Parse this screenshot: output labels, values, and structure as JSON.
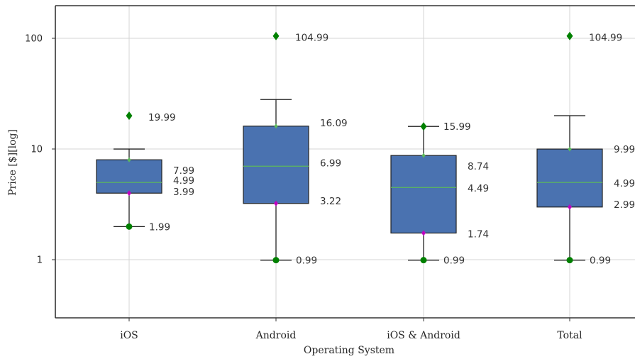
{
  "chart_data": {
    "type": "box",
    "title": "",
    "xlabel": "Operating System",
    "ylabel": "Price [$][log]",
    "yscale": "log",
    "ylim": [
      0.3,
      200
    ],
    "yticks": [
      1,
      10,
      100
    ],
    "ytick_labels": [
      "1",
      "10",
      "100"
    ],
    "grid": true,
    "categories": [
      "iOS",
      "Android",
      "iOS & Android",
      "Total"
    ],
    "boxes": [
      {
        "category": "iOS",
        "whisker_low": 1.99,
        "q1": 3.99,
        "median": 4.99,
        "q3": 7.99,
        "whisker_high": 9.99,
        "outliers": [
          19.99
        ],
        "annotations": [
          {
            "value": 19.99,
            "text": "19.99"
          },
          {
            "value": 7.99,
            "text": "7.99"
          },
          {
            "value": 4.99,
            "text": "4.99"
          },
          {
            "value": 3.99,
            "text": "3.99"
          },
          {
            "value": 1.99,
            "text": "1.99"
          }
        ]
      },
      {
        "category": "Android",
        "whisker_low": 0.99,
        "q1": 3.22,
        "median": 6.99,
        "q3": 16.09,
        "whisker_high": 27.99,
        "outliers": [
          104.99
        ],
        "annotations": [
          {
            "value": 104.99,
            "text": "104.99"
          },
          {
            "value": 16.09,
            "text": "16.09"
          },
          {
            "value": 6.99,
            "text": "6.99"
          },
          {
            "value": 3.22,
            "text": "3.22"
          },
          {
            "value": 0.99,
            "text": "0.99"
          }
        ]
      },
      {
        "category": "iOS & Android",
        "whisker_low": 0.99,
        "q1": 1.74,
        "median": 4.49,
        "q3": 8.74,
        "whisker_high": 15.99,
        "outliers": [],
        "annotations": [
          {
            "value": 15.99,
            "text": "15.99"
          },
          {
            "value": 8.74,
            "text": "8.74"
          },
          {
            "value": 4.49,
            "text": "4.49"
          },
          {
            "value": 1.74,
            "text": "1.74"
          },
          {
            "value": 0.99,
            "text": "0.99"
          }
        ]
      },
      {
        "category": "Total",
        "whisker_low": 0.99,
        "q1": 2.99,
        "median": 4.99,
        "q3": 9.99,
        "whisker_high": 19.99,
        "outliers": [
          104.99
        ],
        "annotations": [
          {
            "value": 104.99,
            "text": "104.99"
          },
          {
            "value": 9.99,
            "text": "9.99"
          },
          {
            "value": 4.99,
            "text": "4.99"
          },
          {
            "value": 2.99,
            "text": "2.99"
          },
          {
            "value": 0.99,
            "text": "0.99"
          }
        ]
      }
    ],
    "colors": {
      "box_fill": "#4a72b0",
      "box_edge": "#222222",
      "median_line": "#5cb85c",
      "whisker": "#222222",
      "grid": "#d4d4d4",
      "axis": "#333333",
      "max_marker": "#008000",
      "min_marker": "#008000",
      "q1_marker": "#c000c0",
      "outlier_marker": "#008000"
    }
  }
}
